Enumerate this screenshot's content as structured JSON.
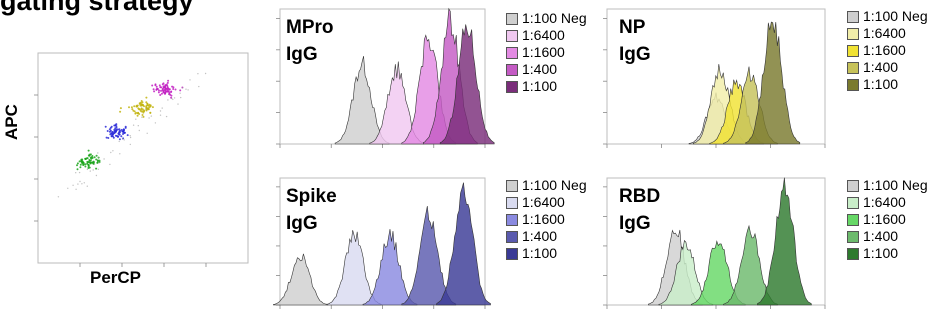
{
  "heading": "gating strategy",
  "scatter": {
    "xlabel": "PerCP",
    "ylabel": "APC",
    "clusters": [
      {
        "color": "#1aa51a"
      },
      {
        "color": "#2a2ad8"
      },
      {
        "color": "#c2b40e"
      },
      {
        "color": "#c21ec2"
      }
    ]
  },
  "legend_labels": [
    "1:100 Neg",
    "1:6400",
    "1:1600",
    "1:400",
    "1:100"
  ],
  "chart_data": [
    {
      "type": "area",
      "title": "MPro",
      "subtitle": "IgG",
      "x_scale": "log",
      "xlim": [
        10,
        100000
      ],
      "series": [
        {
          "name": "1:100 Neg",
          "color": "#cfcfcf",
          "peak_x": 400,
          "peak_height": 0.62
        },
        {
          "name": "1:6400",
          "color": "#f0c8f0",
          "peak_x": 1900,
          "peak_height": 0.58
        },
        {
          "name": "1:1600",
          "color": "#e38ae3",
          "peak_x": 8000,
          "peak_height": 0.83
        },
        {
          "name": "1:400",
          "color": "#c45bc4",
          "peak_x": 21000,
          "peak_height": 0.96
        },
        {
          "name": "1:100",
          "color": "#7a2d7a",
          "peak_x": 45000,
          "peak_height": 0.94
        }
      ]
    },
    {
      "type": "area",
      "title": "NP",
      "subtitle": "IgG",
      "x_scale": "log",
      "xlim": [
        10,
        100000
      ],
      "series": [
        {
          "name": "1:100 Neg",
          "color": "#cfcfcf",
          "peak_x": 1000,
          "peak_height": 0.37
        },
        {
          "name": "1:6400",
          "color": "#f2eeaa",
          "peak_x": 1200,
          "peak_height": 0.58
        },
        {
          "name": "1:1600",
          "color": "#f0e233",
          "peak_x": 2400,
          "peak_height": 0.48
        },
        {
          "name": "1:400",
          "color": "#c6c25a",
          "peak_x": 4300,
          "peak_height": 0.55
        },
        {
          "name": "1:100",
          "color": "#7a7a2e",
          "peak_x": 11000,
          "peak_height": 0.96
        }
      ]
    },
    {
      "type": "area",
      "title": "Spike",
      "subtitle": "IgG",
      "x_scale": "log",
      "xlim": [
        10,
        100000
      ],
      "series": [
        {
          "name": "1:100 Neg",
          "color": "#cfcfcf",
          "peak_x": 25,
          "peak_height": 0.41
        },
        {
          "name": "1:6400",
          "color": "#d9dbf0",
          "peak_x": 280,
          "peak_height": 0.58
        },
        {
          "name": "1:1600",
          "color": "#8a8ae0",
          "peak_x": 1400,
          "peak_height": 0.58
        },
        {
          "name": "1:400",
          "color": "#5a5aae",
          "peak_x": 8000,
          "peak_height": 0.75
        },
        {
          "name": "1:100",
          "color": "#3a3a96",
          "peak_x": 38000,
          "peak_height": 0.98
        }
      ]
    },
    {
      "type": "area",
      "title": "RBD",
      "subtitle": "IgG",
      "x_scale": "log",
      "xlim": [
        10,
        100000
      ],
      "series": [
        {
          "name": "1:100 Neg",
          "color": "#cfcfcf",
          "peak_x": 180,
          "peak_height": 0.63
        },
        {
          "name": "1:6400",
          "color": "#c9eec9",
          "peak_x": 280,
          "peak_height": 0.5
        },
        {
          "name": "1:1600",
          "color": "#66d866",
          "peak_x": 1100,
          "peak_height": 0.55
        },
        {
          "name": "1:400",
          "color": "#6cba6c",
          "peak_x": 4300,
          "peak_height": 0.6
        },
        {
          "name": "1:100",
          "color": "#2e7a2e",
          "peak_x": 18000,
          "peak_height": 0.97
        }
      ]
    }
  ]
}
